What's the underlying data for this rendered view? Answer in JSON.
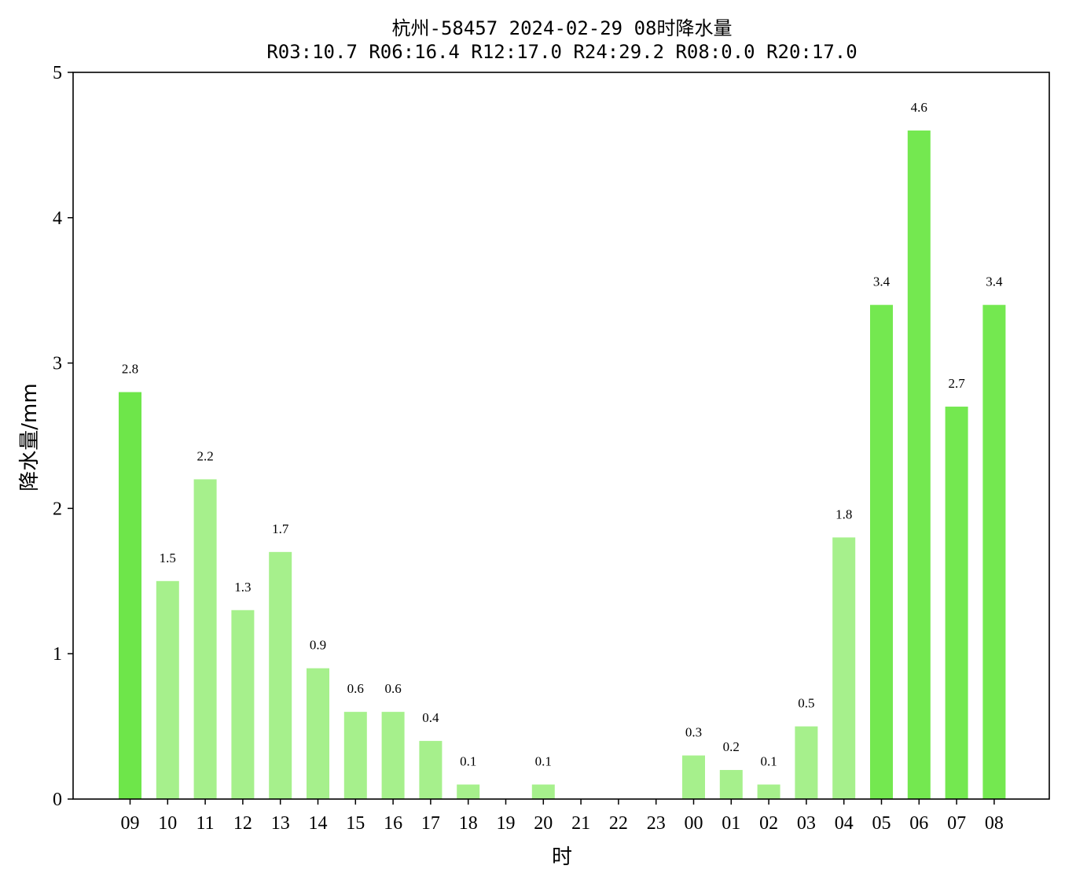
{
  "chart_data": {
    "type": "bar",
    "title": "杭州-58457  2024-02-29 08时降水量",
    "subtitle": "R03:10.7  R06:16.4  R12:17.0  R24:29.2  R08:0.0  R20:17.0",
    "xlabel": "时",
    "ylabel": "降水量/mm",
    "ylim": [
      0,
      5
    ],
    "yticks": [
      "0",
      "1",
      "2",
      "3",
      "4",
      "5"
    ],
    "grid": false,
    "categories": [
      "09",
      "10",
      "11",
      "12",
      "13",
      "14",
      "15",
      "16",
      "17",
      "18",
      "19",
      "20",
      "21",
      "22",
      "23",
      "00",
      "01",
      "02",
      "03",
      "04",
      "05",
      "06",
      "07",
      "08"
    ],
    "values": [
      2.8,
      1.5,
      2.2,
      1.3,
      1.7,
      0.9,
      0.6,
      0.6,
      0.4,
      0.1,
      0,
      0.1,
      0,
      0,
      0,
      0.3,
      0.2,
      0.1,
      0.5,
      1.8,
      3.4,
      4.6,
      2.7,
      3.4
    ],
    "value_labels": [
      "2.8",
      "1.5",
      "2.2",
      "1.3",
      "1.7",
      "0.9",
      "0.6",
      "0.6",
      "0.4",
      "0.1",
      "",
      "0.1",
      "",
      "",
      "",
      "0.3",
      "0.2",
      "0.1",
      "0.5",
      "1.8",
      "3.4",
      "4.6",
      "2.7",
      "3.4"
    ],
    "colors": {
      "light": "#a6f08c",
      "dark": "#74e850",
      "first": "#6ee64a"
    },
    "bar_color_levels": [
      "first",
      "light",
      "light",
      "light",
      "light",
      "light",
      "light",
      "light",
      "light",
      "light",
      "light",
      "light",
      "light",
      "light",
      "light",
      "light",
      "light",
      "light",
      "light",
      "light",
      "dark",
      "dark",
      "dark",
      "dark"
    ]
  }
}
